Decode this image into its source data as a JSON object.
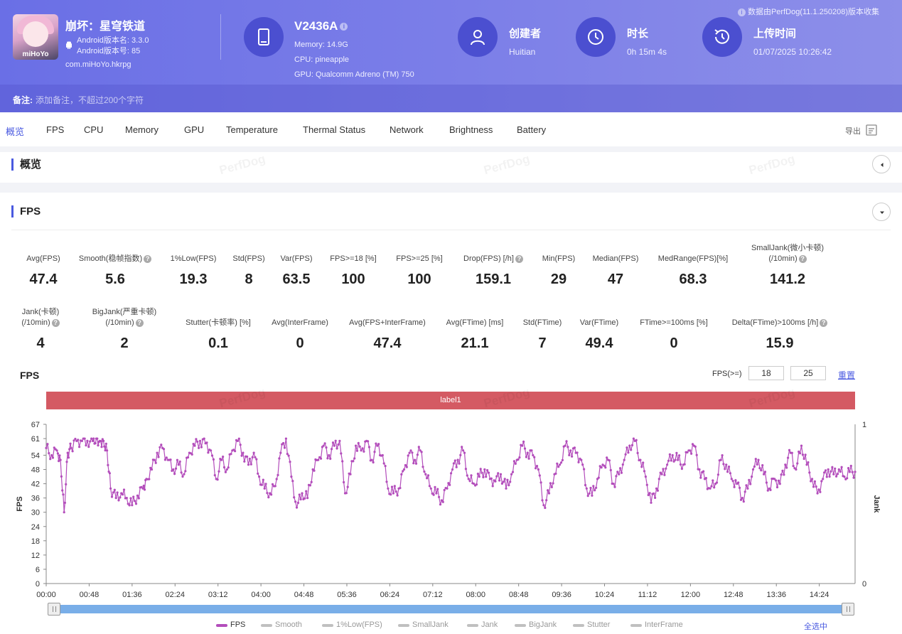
{
  "header": {
    "app_name": "崩坏：星穹铁道",
    "app_icon_text": "miHoYo",
    "android_version_name": "Android版本名: 3.3.0",
    "android_version_code": "Android版本号: 85",
    "package": "com.miHoYo.hkrpg",
    "device_model": "V2436A",
    "memory": "Memory: 14.9G",
    "cpu": "CPU: pineapple",
    "gpu": "GPU: Qualcomm Adreno (TM) 750",
    "creator_title": "创建者",
    "creator": "Huitian",
    "duration_title": "时长",
    "duration": "0h 15m 4s",
    "upload_title": "上传时间",
    "upload_time": "01/07/2025 10:26:42",
    "data_source": "数据由PerfDog(11.1.250208)版本收集",
    "note_label": "备注:",
    "note_placeholder": "添加备注，不超过200个字符"
  },
  "tabs": [
    "概览",
    "FPS",
    "CPU",
    "Memory",
    "GPU",
    "Temperature",
    "Thermal Status",
    "Network",
    "Brightness",
    "Battery"
  ],
  "active_tab": 0,
  "export_label": "导出",
  "watermark": "PerfDog",
  "sections": {
    "overview": "概览",
    "fps": "FPS"
  },
  "stats_row1": [
    {
      "label": "Avg(FPS)",
      "value": "47.4"
    },
    {
      "label": "Smooth(稳帧指数)",
      "value": "5.6",
      "help": true
    },
    {
      "label": "1%Low(FPS)",
      "value": "19.3"
    },
    {
      "label": "Std(FPS)",
      "value": "8"
    },
    {
      "label": "Var(FPS)",
      "value": "63.5"
    },
    {
      "label": "FPS>=18 [%]",
      "value": "100"
    },
    {
      "label": "FPS>=25 [%]",
      "value": "100"
    },
    {
      "label": "Drop(FPS) [/h]",
      "value": "159.1",
      "help": true
    },
    {
      "label": "Min(FPS)",
      "value": "29"
    },
    {
      "label": "Median(FPS)",
      "value": "47"
    },
    {
      "label": "MedRange(FPS)[%]",
      "value": "68.3"
    },
    {
      "label": "SmallJank(微小卡顿)",
      "label2": "(/10min)",
      "value": "141.2",
      "help": true
    }
  ],
  "stats_row2": [
    {
      "label": "Jank(卡顿)",
      "label2": "(/10min)",
      "value": "4",
      "help": true
    },
    {
      "label": "BigJank(严重卡顿)",
      "label2": "(/10min)",
      "value": "2",
      "help": true
    },
    {
      "label": "Stutter(卡顿率) [%]",
      "value": "0.1"
    },
    {
      "label": "Avg(InterFrame)",
      "value": "0"
    },
    {
      "label": "Avg(FPS+InterFrame)",
      "value": "47.4"
    },
    {
      "label": "Avg(FTime) [ms]",
      "value": "21.1"
    },
    {
      "label": "Std(FTime)",
      "value": "7"
    },
    {
      "label": "Var(FTime)",
      "value": "49.4"
    },
    {
      "label": "FTime>=100ms [%]",
      "value": "0"
    },
    {
      "label": "Delta(FTime)>100ms [/h]",
      "value": "15.9",
      "help": true
    }
  ],
  "chart_controls": {
    "title": "FPS",
    "threshold_label": "FPS(>=)",
    "threshold1": "18",
    "threshold2": "25",
    "reset_label": "重置",
    "band_label": "label1",
    "select_all": "全选中"
  },
  "legend": [
    {
      "name": "FPS",
      "on": true,
      "color": "#b34dbb"
    },
    {
      "name": "Smooth",
      "on": false
    },
    {
      "name": "1%Low(FPS)",
      "on": false
    },
    {
      "name": "SmallJank",
      "on": false
    },
    {
      "name": "Jank",
      "on": false
    },
    {
      "name": "BigJank",
      "on": false
    },
    {
      "name": "Stutter",
      "on": false
    },
    {
      "name": "InterFrame",
      "on": false
    }
  ],
  "chart_data": {
    "type": "line",
    "ylabel": "FPS",
    "y2label": "Jank",
    "ylim": [
      0,
      67
    ],
    "y_ticks": [
      0,
      6,
      12,
      18,
      24,
      30,
      36,
      42,
      48,
      54,
      61,
      67
    ],
    "y2_ticks": [
      0,
      1
    ],
    "x_ticks": [
      "00:00",
      "00:48",
      "01:36",
      "02:24",
      "03:12",
      "04:00",
      "04:48",
      "05:36",
      "06:24",
      "07:12",
      "08:00",
      "08:48",
      "09:36",
      "10:24",
      "11:12",
      "12:00",
      "12:48",
      "13:36",
      "14:24"
    ],
    "x_range_seconds": [
      0,
      904
    ],
    "series": [
      {
        "name": "FPS",
        "color": "#b34dbb",
        "keypoints": [
          [
            0,
            57
          ],
          [
            6,
            54
          ],
          [
            12,
            56
          ],
          [
            16,
            52
          ],
          [
            20,
            30
          ],
          [
            24,
            55
          ],
          [
            28,
            57
          ],
          [
            34,
            60
          ],
          [
            40,
            60
          ],
          [
            46,
            60
          ],
          [
            52,
            60
          ],
          [
            56,
            61
          ],
          [
            60,
            60
          ],
          [
            64,
            60
          ],
          [
            68,
            56
          ],
          [
            72,
            40
          ],
          [
            78,
            36
          ],
          [
            84,
            38
          ],
          [
            90,
            36
          ],
          [
            96,
            33
          ],
          [
            102,
            37
          ],
          [
            108,
            40
          ],
          [
            112,
            44
          ],
          [
            118,
            48
          ],
          [
            124,
            55
          ],
          [
            130,
            57
          ],
          [
            136,
            52
          ],
          [
            142,
            48
          ],
          [
            148,
            50
          ],
          [
            154,
            46
          ],
          [
            160,
            55
          ],
          [
            166,
            58
          ],
          [
            172,
            60
          ],
          [
            178,
            59
          ],
          [
            184,
            56
          ],
          [
            190,
            44
          ],
          [
            196,
            52
          ],
          [
            202,
            48
          ],
          [
            208,
            56
          ],
          [
            214,
            60
          ],
          [
            220,
            55
          ],
          [
            226,
            50
          ],
          [
            232,
            55
          ],
          [
            238,
            45
          ],
          [
            244,
            40
          ],
          [
            250,
            38
          ],
          [
            256,
            41
          ],
          [
            262,
            55
          ],
          [
            268,
            61
          ],
          [
            274,
            45
          ],
          [
            280,
            32
          ],
          [
            286,
            38
          ],
          [
            292,
            36
          ],
          [
            298,
            48
          ],
          [
            304,
            52
          ],
          [
            310,
            58
          ],
          [
            316,
            54
          ],
          [
            322,
            58
          ],
          [
            328,
            60
          ],
          [
            334,
            38
          ],
          [
            340,
            46
          ],
          [
            346,
            58
          ],
          [
            352,
            56
          ],
          [
            358,
            60
          ],
          [
            364,
            52
          ],
          [
            370,
            58
          ],
          [
            376,
            54
          ],
          [
            382,
            40
          ],
          [
            388,
            38
          ],
          [
            394,
            40
          ],
          [
            400,
            48
          ],
          [
            406,
            55
          ],
          [
            412,
            52
          ],
          [
            418,
            56
          ],
          [
            424,
            46
          ],
          [
            430,
            40
          ],
          [
            436,
            38
          ],
          [
            442,
            35
          ],
          [
            448,
            40
          ],
          [
            454,
            48
          ],
          [
            460,
            52
          ],
          [
            466,
            56
          ],
          [
            472,
            44
          ],
          [
            478,
            42
          ],
          [
            484,
            45
          ],
          [
            490,
            48
          ],
          [
            496,
            44
          ],
          [
            502,
            43
          ],
          [
            508,
            46
          ],
          [
            514,
            40
          ],
          [
            520,
            46
          ],
          [
            526,
            52
          ],
          [
            532,
            58
          ],
          [
            538,
            55
          ],
          [
            544,
            54
          ],
          [
            550,
            48
          ],
          [
            556,
            33
          ],
          [
            562,
            38
          ],
          [
            568,
            46
          ],
          [
            574,
            50
          ],
          [
            580,
            58
          ],
          [
            586,
            56
          ],
          [
            592,
            55
          ],
          [
            598,
            52
          ],
          [
            604,
            40
          ],
          [
            610,
            37
          ],
          [
            616,
            44
          ],
          [
            622,
            50
          ],
          [
            628,
            52
          ],
          [
            634,
            42
          ],
          [
            640,
            46
          ],
          [
            646,
            52
          ],
          [
            652,
            58
          ],
          [
            658,
            60
          ],
          [
            664,
            52
          ],
          [
            670,
            45
          ],
          [
            676,
            34
          ],
          [
            682,
            40
          ],
          [
            688,
            46
          ],
          [
            694,
            50
          ],
          [
            700,
            54
          ],
          [
            706,
            52
          ],
          [
            712,
            50
          ],
          [
            718,
            56
          ],
          [
            724,
            58
          ],
          [
            730,
            48
          ],
          [
            736,
            44
          ],
          [
            742,
            40
          ],
          [
            748,
            42
          ],
          [
            754,
            52
          ],
          [
            760,
            50
          ],
          [
            766,
            44
          ],
          [
            772,
            42
          ],
          [
            778,
            36
          ],
          [
            784,
            40
          ],
          [
            790,
            48
          ],
          [
            796,
            52
          ],
          [
            802,
            46
          ],
          [
            808,
            40
          ],
          [
            814,
            44
          ],
          [
            820,
            42
          ],
          [
            826,
            50
          ],
          [
            832,
            55
          ],
          [
            838,
            48
          ],
          [
            844,
            58
          ],
          [
            850,
            50
          ],
          [
            856,
            44
          ],
          [
            862,
            38
          ],
          [
            868,
            44
          ],
          [
            874,
            48
          ],
          [
            880,
            46
          ],
          [
            886,
            48
          ],
          [
            892,
            45
          ],
          [
            898,
            47
          ],
          [
            904,
            47
          ]
        ]
      }
    ]
  }
}
